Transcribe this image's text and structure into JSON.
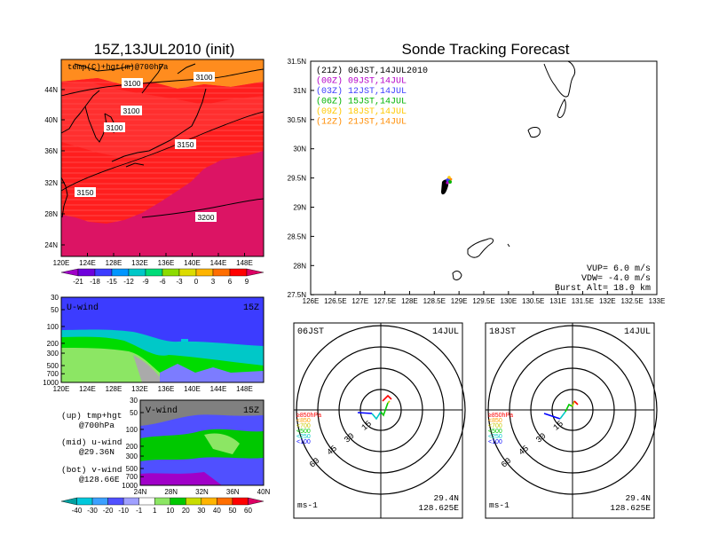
{
  "left_panel": {
    "title": "15Z,13JUL2010 (init)",
    "map_label": "temp(C)+hgt(m)@700hPa",
    "lat_ticks": [
      "44N",
      "40N",
      "36N",
      "32N",
      "28N",
      "24N"
    ],
    "lon_ticks": [
      "120E",
      "124E",
      "128E",
      "132E",
      "136E",
      "140E",
      "144E",
      "148E"
    ],
    "contours": [
      "3100",
      "3100",
      "3100",
      "3100",
      "3150",
      "3150",
      "3200"
    ],
    "temp_colorbar": {
      "labels": [
        "-21",
        "-18",
        "-15",
        "-12",
        "-9",
        "-6",
        "-3",
        "0",
        "3",
        "6",
        "9"
      ],
      "colors": [
        "#a000c8",
        "#6e00dc",
        "#3c3cff",
        "#0096ff",
        "#00c8c8",
        "#00dc78",
        "#8cdc00",
        "#dcdc00",
        "#ffb400",
        "#ff6e00",
        "#ff0000",
        "#dc0064"
      ]
    }
  },
  "u_panel": {
    "label": "U-wind",
    "time": "15Z",
    "pres_ticks": [
      "30",
      "50",
      "100",
      "200",
      "300",
      "500",
      "700",
      "1000"
    ],
    "lon_ticks": [
      "120E",
      "124E",
      "128E",
      "132E",
      "136E",
      "140E",
      "144E",
      "148E"
    ]
  },
  "v_panel": {
    "label": "V-wind",
    "time": "15Z",
    "pres_ticks": [
      "30",
      "50",
      "100",
      "200",
      "300",
      "500",
      "700",
      "1000"
    ],
    "lat_ticks": [
      "24N",
      "28N",
      "32N",
      "36N",
      "40N"
    ]
  },
  "legend_notes": {
    "up1": "(up) tmp+hgt",
    "up2": "@700hPa",
    "mid1": "(mid) u-wind",
    "mid2": "@29.36N",
    "bot1": "(bot) v-wind",
    "bot2": "@128.66E"
  },
  "wind_colorbar": {
    "labels": [
      "-40",
      "-30",
      "-20",
      "-10",
      "-1",
      "1",
      "10",
      "20",
      "30",
      "40",
      "50",
      "60"
    ],
    "colors": [
      "#00a0a0",
      "#00c8dc",
      "#3ca0ff",
      "#5050ff",
      "#a0a0ff",
      "#ffffff",
      "#8ce664",
      "#00c800",
      "#c8dc00",
      "#ffb400",
      "#ff6e00",
      "#ff0000",
      "#dc0064"
    ]
  },
  "main_map": {
    "title": "Sonde Tracking Forecast",
    "lat_ticks": [
      "31.5N",
      "31N",
      "30.5N",
      "30N",
      "29.5N",
      "29N",
      "28.5N",
      "28N",
      "27.5N"
    ],
    "lon_ticks": [
      "126E",
      "126.5E",
      "127E",
      "127.5E",
      "128E",
      "128.5E",
      "129E",
      "129.5E",
      "130E",
      "130.5E",
      "131E",
      "131.5E",
      "132E",
      "132.5E",
      "133E"
    ],
    "tracks": [
      {
        "tag": "(21Z)",
        "text": "06JST,14JUL2010",
        "color": "#000000"
      },
      {
        "tag": "(00Z)",
        "text": "09JST,14JUL",
        "color": "#b400c8"
      },
      {
        "tag": "(03Z)",
        "text": "12JST,14JUL",
        "color": "#3c3cff"
      },
      {
        "tag": "(06Z)",
        "text": "15JST,14JUL",
        "color": "#00b400"
      },
      {
        "tag": "(09Z)",
        "text": "18JST,14JUL",
        "color": "#ffc800"
      },
      {
        "tag": "(12Z)",
        "text": "21JST,14JUL",
        "color": "#ff8c00"
      }
    ],
    "vup": "VUP= 6.0 m/s",
    "vdw": "VDW= -4.0 m/s",
    "burst": "Burst Alt= 18.0 km"
  },
  "hodographs": [
    {
      "time": "06JST",
      "date": "14JUL",
      "lat": "29.4N",
      "lon": "128.625E",
      "unit": "ms-1",
      "rings": [
        "15",
        "30",
        "45",
        "60"
      ],
      "levels": [
        {
          "t": "≥850hPa",
          "c": "#ff0000"
        },
        {
          "t": "<850",
          "c": "#ffa000"
        },
        {
          "t": "<700",
          "c": "#c8c800"
        },
        {
          "t": "<500",
          "c": "#00c800"
        },
        {
          "t": "<250",
          "c": "#00c8c8"
        },
        {
          "t": "<100",
          "c": "#0000ff"
        }
      ]
    },
    {
      "time": "18JST",
      "date": "14JUL",
      "lat": "29.4N",
      "lon": "128.625E",
      "unit": "ms-1",
      "rings": [
        "15",
        "30",
        "45",
        "60"
      ],
      "levels": [
        {
          "t": "≥850hPa",
          "c": "#ff0000"
        },
        {
          "t": "<850",
          "c": "#ffa000"
        },
        {
          "t": "<700",
          "c": "#c8c800"
        },
        {
          "t": "<500",
          "c": "#00c800"
        },
        {
          "t": "<250",
          "c": "#00c8c8"
        },
        {
          "t": "<100",
          "c": "#0000ff"
        }
      ]
    }
  ],
  "chart_data": [
    {
      "type": "heatmap",
      "title": "15Z,13JUL2010 (init)",
      "subtitle": "temp(C)+hgt(m)@700hPa",
      "xlabel": "",
      "ylabel": "",
      "xlim": [
        "120E",
        "150E"
      ],
      "ylim": [
        "21N",
        "48N"
      ],
      "contour_levels": [
        3100,
        3150,
        3200
      ]
    },
    {
      "type": "heatmap",
      "title": "U-wind",
      "xlim": [
        "120E",
        "150E"
      ],
      "ylim": [
        1000,
        30
      ]
    },
    {
      "type": "heatmap",
      "title": "V-wind",
      "xlim": [
        "24N",
        "40N"
      ],
      "ylim": [
        1000,
        30
      ]
    },
    {
      "type": "scatter",
      "title": "Sonde Tracking Forecast",
      "xlim": [
        126,
        133
      ],
      "ylim": [
        27.5,
        31.5
      ],
      "points": [
        {
          "x": 128.7,
          "y": 29.3
        }
      ]
    }
  ]
}
